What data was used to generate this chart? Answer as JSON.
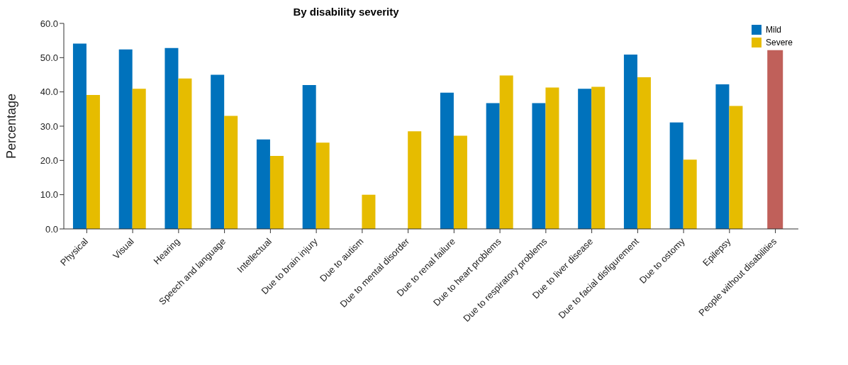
{
  "chart_data": {
    "type": "bar",
    "title": "By disability severity",
    "ylabel": "Percentage",
    "categories": [
      "Physical",
      "Visual",
      "Hearing",
      "Speech and language",
      "Intellectual",
      "Due to brain injury",
      "Due to autism",
      "Due to mental disorder",
      "Due to renal failure",
      "Due to heart problems",
      "Due to respiratory problems",
      "Due to liver disease",
      "Due to facial disfigurement",
      "Due to ostomy",
      "Epilepsy",
      "People without disabilities"
    ],
    "series": [
      {
        "name": "Mild",
        "color": "#0072bc",
        "values": [
          54.1,
          52.4,
          52.8,
          45.0,
          26.1,
          42.0,
          null,
          null,
          39.8,
          36.7,
          36.7,
          40.9,
          50.9,
          31.1,
          42.2,
          null
        ]
      },
      {
        "name": "Severe",
        "color": "#e6bc00",
        "values": [
          39.1,
          40.9,
          43.9,
          33.0,
          21.3,
          25.2,
          10.0,
          28.5,
          27.2,
          44.8,
          41.3,
          41.5,
          44.3,
          20.2,
          35.9,
          null
        ]
      },
      {
        "color": "#c0605a",
        "values": [
          null,
          null,
          null,
          null,
          null,
          null,
          null,
          null,
          null,
          null,
          null,
          null,
          null,
          null,
          null,
          52.2
        ]
      }
    ],
    "ylim": [
      0,
      60
    ],
    "yticks": [
      {
        "value": 0,
        "label": "0.0"
      },
      {
        "value": 10,
        "label": "10.0"
      },
      {
        "value": 20,
        "label": "20.0"
      },
      {
        "value": 30,
        "label": "30.0"
      },
      {
        "value": 40,
        "label": "40.0"
      },
      {
        "value": 50,
        "label": "50.0"
      },
      {
        "value": 60,
        "label": "60.0"
      }
    ],
    "grid": false,
    "legend": "top right"
  }
}
